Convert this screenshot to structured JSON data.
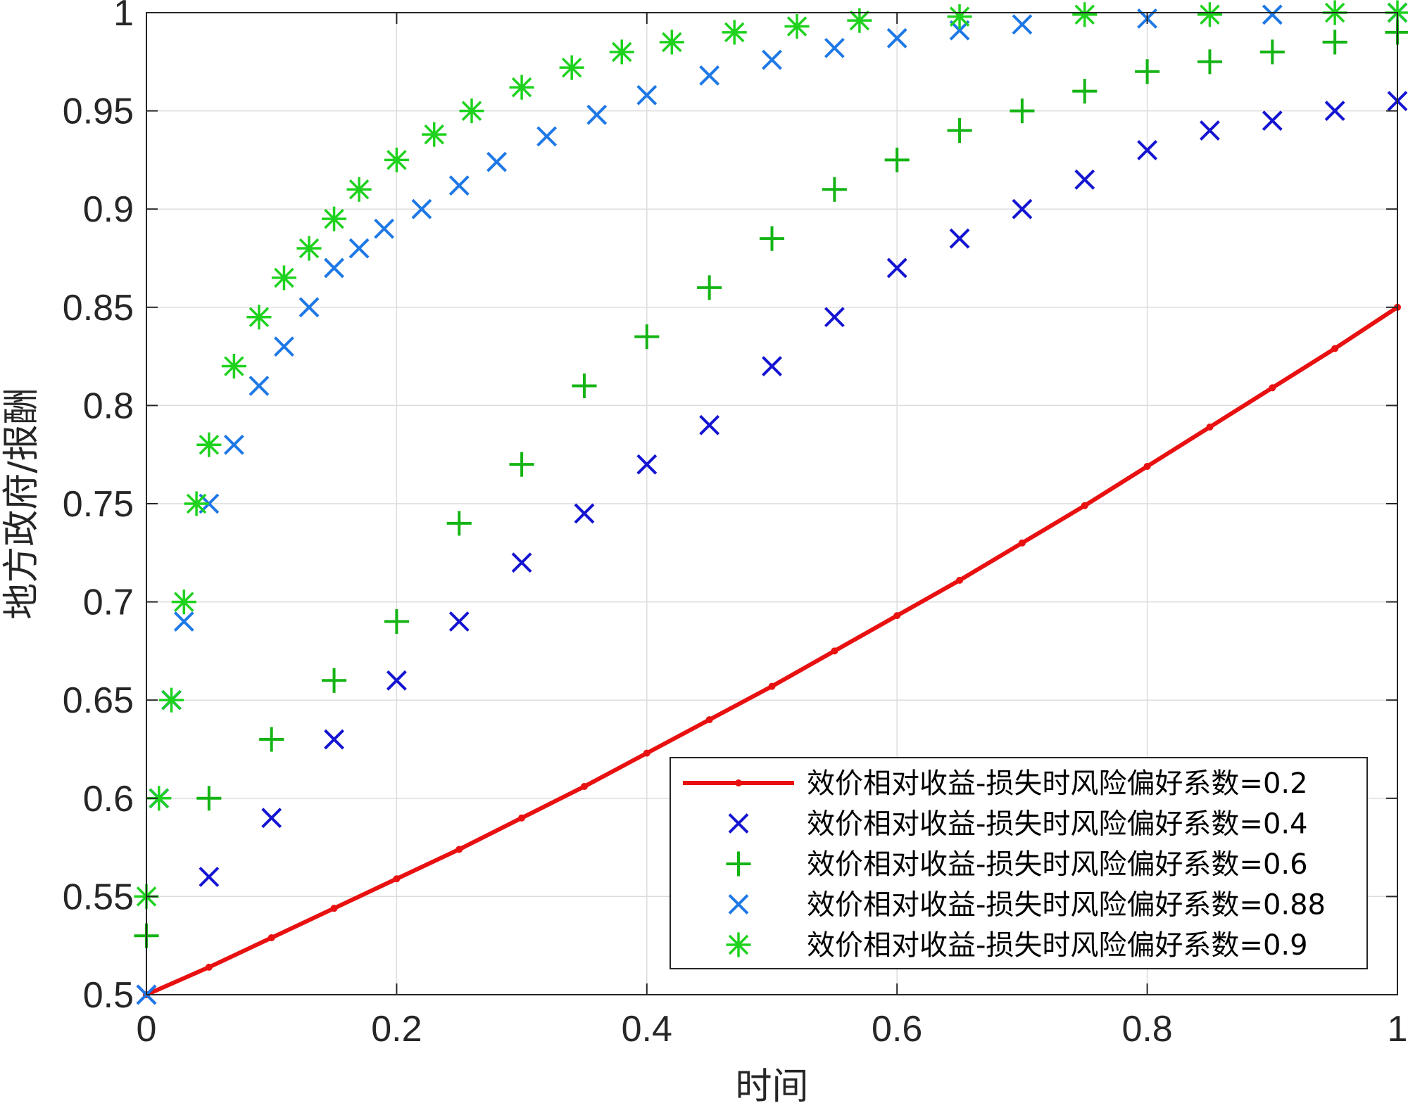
{
  "chart_data": {
    "type": "scatter",
    "xlabel": "时间",
    "ylabel": "地方政府/报酬",
    "xlim": [
      0,
      1
    ],
    "ylim": [
      0.5,
      1
    ],
    "xticks": [
      0,
      0.2,
      0.4,
      0.6,
      0.8,
      1
    ],
    "yticks": [
      0.5,
      0.55,
      0.6,
      0.65,
      0.7,
      0.75,
      0.8,
      0.85,
      0.9,
      0.95,
      1
    ],
    "xtick_labels": [
      "0",
      "0.2",
      "0.4",
      "0.6",
      "0.8",
      "1"
    ],
    "ytick_labels": [
      "0.5",
      "0.55",
      "0.6",
      "0.65",
      "0.7",
      "0.75",
      "0.8",
      "0.85",
      "0.9",
      "0.95",
      "1"
    ],
    "grid": true,
    "legend_position": "bottom-right",
    "series": [
      {
        "name": "效价相对收益-损失时风险偏好系数=0.2",
        "style": "line",
        "marker": "dot",
        "color": "#e81010",
        "x": [
          0,
          0.05,
          0.1,
          0.15,
          0.2,
          0.25,
          0.3,
          0.35,
          0.4,
          0.45,
          0.5,
          0.55,
          0.6,
          0.65,
          0.7,
          0.75,
          0.8,
          0.85,
          0.9,
          0.95,
          1
        ],
        "y": [
          0.5,
          0.514,
          0.529,
          0.544,
          0.559,
          0.574,
          0.59,
          0.606,
          0.623,
          0.64,
          0.657,
          0.675,
          0.693,
          0.711,
          0.73,
          0.749,
          0.769,
          0.789,
          0.809,
          0.829,
          0.85
        ]
      },
      {
        "name": "效价相对收益-损失时风险偏好系数=0.4",
        "style": "marker",
        "marker": "x",
        "color": "#1414d2",
        "x": [
          0,
          0.05,
          0.1,
          0.15,
          0.2,
          0.25,
          0.3,
          0.35,
          0.4,
          0.45,
          0.5,
          0.55,
          0.6,
          0.65,
          0.7,
          0.75,
          0.8,
          0.85,
          0.9,
          0.95,
          1
        ],
        "y": [
          0.5,
          0.56,
          0.59,
          0.63,
          0.66,
          0.69,
          0.72,
          0.745,
          0.77,
          0.79,
          0.82,
          0.845,
          0.87,
          0.885,
          0.9,
          0.915,
          0.93,
          0.94,
          0.945,
          0.95,
          0.955
        ]
      },
      {
        "name": "效价相对收益-损失时风险偏好系数=0.6",
        "style": "marker",
        "marker": "plus",
        "color": "#14b414",
        "x": [
          0,
          0.05,
          0.1,
          0.15,
          0.2,
          0.25,
          0.3,
          0.35,
          0.4,
          0.45,
          0.5,
          0.55,
          0.6,
          0.65,
          0.7,
          0.75,
          0.8,
          0.85,
          0.9,
          0.95,
          1
        ],
        "y": [
          0.53,
          0.6,
          0.63,
          0.66,
          0.69,
          0.74,
          0.77,
          0.81,
          0.835,
          0.86,
          0.885,
          0.91,
          0.925,
          0.94,
          0.95,
          0.96,
          0.97,
          0.975,
          0.98,
          0.985,
          0.99
        ]
      },
      {
        "name": "效价相对收益-损失时风险偏好系数=0.88",
        "style": "marker",
        "marker": "x",
        "color": "#1e78e6",
        "x": [
          0,
          0.01,
          0.02,
          0.03,
          0.05,
          0.07,
          0.09,
          0.11,
          0.13,
          0.15,
          0.17,
          0.19,
          0.22,
          0.25,
          0.28,
          0.32,
          0.36,
          0.4,
          0.45,
          0.5,
          0.55,
          0.6,
          0.65,
          0.7,
          0.8,
          0.9,
          1
        ],
        "y": [
          0.5,
          0.6,
          0.65,
          0.69,
          0.75,
          0.78,
          0.81,
          0.83,
          0.85,
          0.87,
          0.88,
          0.89,
          0.9,
          0.912,
          0.924,
          0.937,
          0.948,
          0.958,
          0.968,
          0.976,
          0.982,
          0.987,
          0.991,
          0.994,
          0.997,
          0.999,
          1.0
        ]
      },
      {
        "name": "效价相对收益-损失时风险偏好系数=0.9",
        "style": "marker",
        "marker": "asterisk",
        "color": "#1ed21e",
        "x": [
          0,
          0.01,
          0.02,
          0.03,
          0.04,
          0.05,
          0.07,
          0.09,
          0.11,
          0.13,
          0.15,
          0.17,
          0.2,
          0.23,
          0.26,
          0.3,
          0.34,
          0.38,
          0.42,
          0.47,
          0.52,
          0.57,
          0.65,
          0.75,
          0.85,
          0.95,
          1
        ],
        "y": [
          0.55,
          0.6,
          0.65,
          0.7,
          0.75,
          0.78,
          0.82,
          0.845,
          0.865,
          0.88,
          0.895,
          0.91,
          0.925,
          0.938,
          0.95,
          0.962,
          0.972,
          0.98,
          0.985,
          0.99,
          0.993,
          0.996,
          0.998,
          0.999,
          0.999,
          1.0,
          1.0
        ]
      }
    ]
  }
}
